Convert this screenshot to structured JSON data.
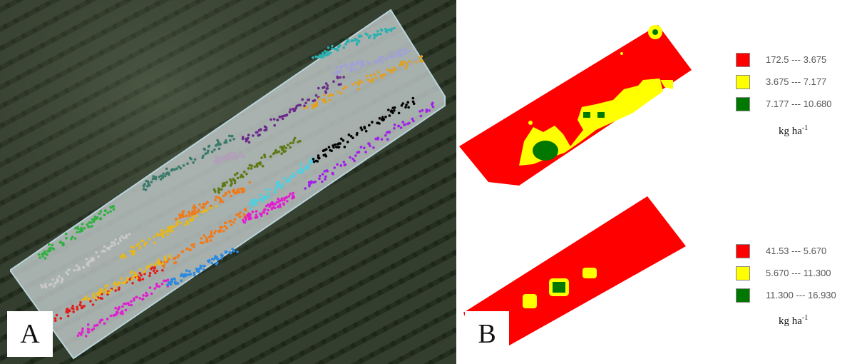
{
  "panel_a": {
    "letter": "A",
    "colors": {
      "field_overlay": "#bfc9c9",
      "imagery_dark": "#2f3a2c",
      "plant_rows": [
        "#e11ecf",
        "#2b8ae0",
        "#e0201c",
        "#f07a1a",
        "#4fcfe0",
        "#000000",
        "#e8b81a",
        "#a020e8",
        "#5d7a12",
        "#2fb040",
        "#c8c8c8",
        "#3a7a6a",
        "#b0a0b8",
        "#6a2a8a",
        "#a0a0d8",
        "#e2a020",
        "#2ab0b0"
      ]
    }
  },
  "panel_b": {
    "letter": "B",
    "maps": [
      {
        "legend": [
          {
            "label": "172.5 --- 3.675",
            "color": "#ff0000"
          },
          {
            "label": "3.675 --- 7.177",
            "color": "#ffff00"
          },
          {
            "label": "7.177 --- 10.680",
            "color": "#007800"
          }
        ],
        "unit": "kg ha",
        "unit_exp": "-1"
      },
      {
        "legend": [
          {
            "label": "41.53 --- 5.670",
            "color": "#ff0000"
          },
          {
            "label": "5.670 --- 11.300",
            "color": "#ffff00"
          },
          {
            "label": "11.300 --- 16.930",
            "color": "#007800"
          }
        ],
        "unit": "kg ha",
        "unit_exp": "-1"
      }
    ]
  }
}
